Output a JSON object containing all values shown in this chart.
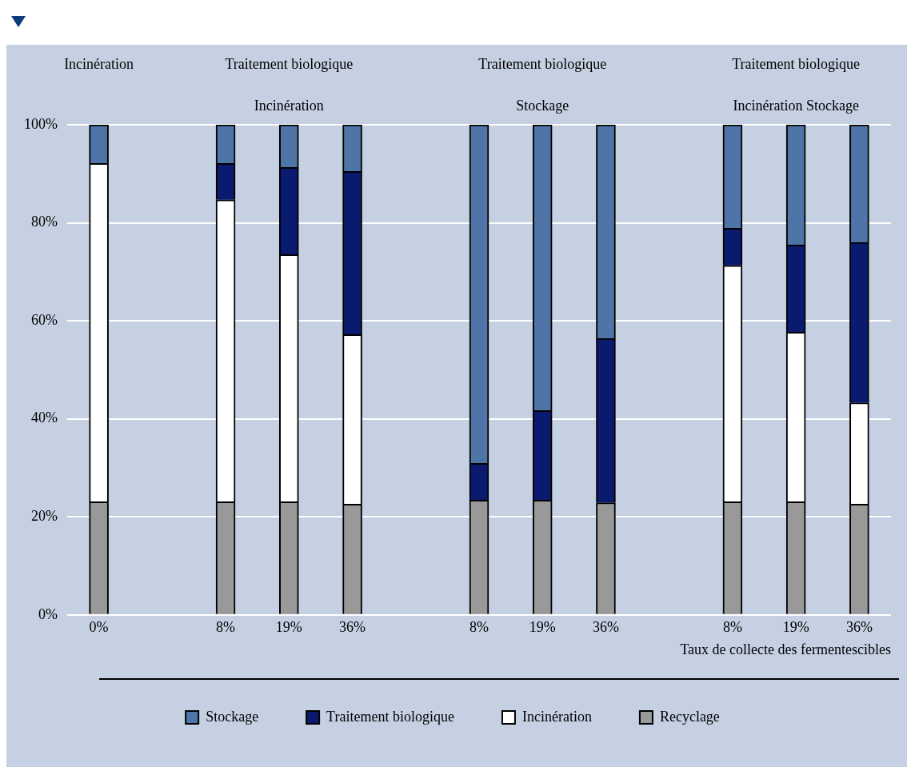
{
  "chart_data": {
    "type": "bar",
    "stacked": true,
    "categories": [
      "0%",
      null,
      "8%",
      "19%",
      "36%",
      null,
      "8%",
      "19%",
      "36%",
      null,
      "8%",
      "19%",
      "36%"
    ],
    "xlabel": "Taux de collecte des fermentescibles",
    "series": [
      {
        "name": "Recyclage",
        "color": "#999999",
        "values": [
          23.1,
          null,
          23.1,
          23.1,
          22.6,
          null,
          23.4,
          23.4,
          22.9,
          null,
          23.1,
          23.1,
          22.6
        ]
      },
      {
        "name": "Incinération",
        "color": "#ffffff",
        "values": [
          69,
          null,
          61.6,
          50.4,
          34.6,
          null,
          0,
          0,
          0,
          null,
          48.2,
          34.6,
          20.7
        ]
      },
      {
        "name": "Traitement biologique",
        "color": "#0a1a6e",
        "values": [
          0,
          null,
          7.4,
          17.8,
          33.3,
          null,
          7.5,
          18.3,
          33.5,
          null,
          7.6,
          17.8,
          32.7
        ]
      },
      {
        "name": "Stockage",
        "color": "#4f74a8",
        "values": [
          7.9,
          null,
          7.9,
          8.7,
          9.5,
          null,
          69.1,
          58.3,
          43.6,
          null,
          21.1,
          24.5,
          24
        ]
      }
    ],
    "ylim": [
      0,
      100
    ],
    "yticks": [
      {
        "value": 0,
        "label": "0%"
      },
      {
        "value": 20,
        "label": "20%"
      },
      {
        "value": 40,
        "label": "40%"
      },
      {
        "value": 60,
        "label": "60%"
      },
      {
        "value": 80,
        "label": "80%"
      },
      {
        "value": 100,
        "label": "100%"
      }
    ],
    "grid": "y",
    "legend": "bottom",
    "annotations": [
      "Incinération",
      "Traitement biologique",
      "Traitement biologique",
      "Traitement biologique",
      "Incinération",
      "Stockage",
      "Incinération Stockage"
    ]
  }
}
